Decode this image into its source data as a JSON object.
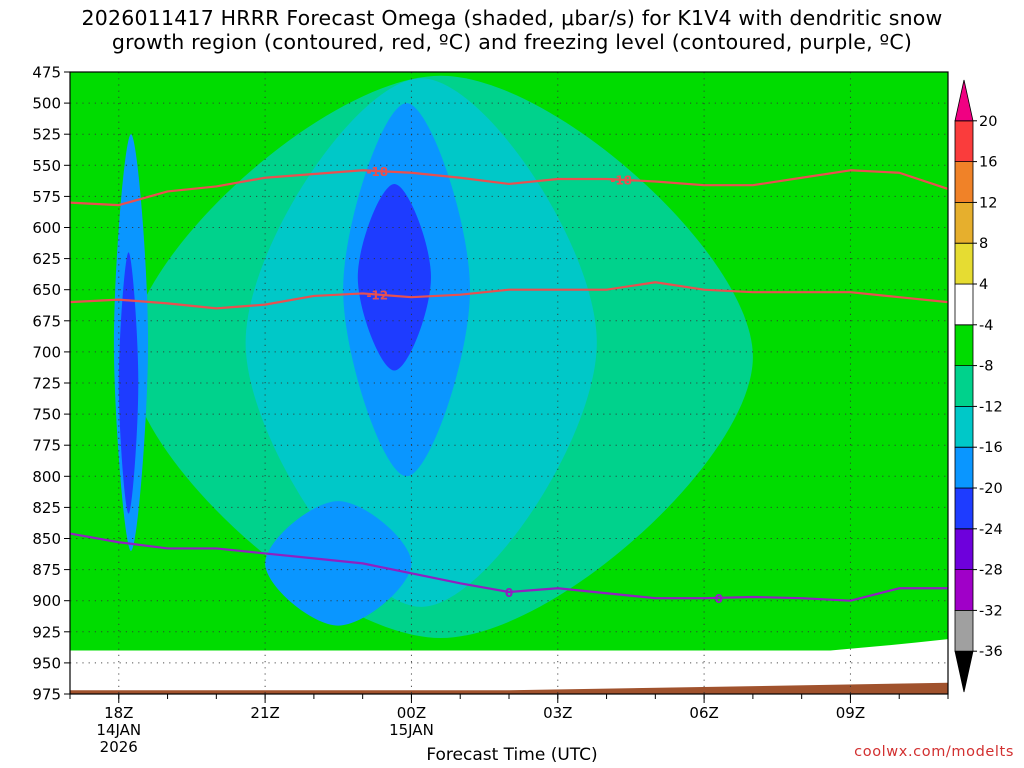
{
  "title": {
    "line1": "2026011417 HRRR Forecast Omega (shaded, μbar/s) for K1V4 with dendritic snow",
    "line2": "growth region (contoured, red, ºC) and freezing level (contoured, purple, ºC)"
  },
  "xlabel": "Forecast Time (UTC)",
  "watermark": "coolwx.com/modelts",
  "chart_data": {
    "type": "heatmap",
    "title": "2026011417 HRRR Forecast Omega (shaded, μbar/s) for K1V4 with dendritic snow growth region (contoured, red, ºC) and freezing level (contoured, purple, ºC)",
    "xlabel": "Forecast Time (UTC)",
    "ylabel": "",
    "x_hours_utc": [
      17,
      18,
      19,
      20,
      21,
      22,
      23,
      24,
      25,
      26,
      27,
      28,
      29,
      30,
      31,
      32,
      33,
      34,
      35
    ],
    "x_ticks": [
      {
        "hour": 18,
        "labels": [
          "18Z",
          "14JAN",
          "2026"
        ]
      },
      {
        "hour": 21,
        "labels": [
          "21Z"
        ]
      },
      {
        "hour": 24,
        "labels": [
          "00Z",
          "15JAN"
        ]
      },
      {
        "hour": 27,
        "labels": [
          "03Z"
        ]
      },
      {
        "hour": 30,
        "labels": [
          "06Z"
        ]
      },
      {
        "hour": 33,
        "labels": [
          "09Z"
        ]
      }
    ],
    "y_pressure_hpa": [
      475,
      500,
      525,
      550,
      575,
      600,
      625,
      650,
      675,
      700,
      725,
      750,
      775,
      800,
      825,
      850,
      875,
      900,
      925,
      950,
      975
    ],
    "y_axis": "pressure (hPa), decreasing upward",
    "ylim": [
      975,
      475
    ],
    "xlim": [
      17.0,
      35.0
    ],
    "grid": "dotted",
    "colorbar": {
      "levels": [
        -36,
        -32,
        -28,
        -24,
        -20,
        -16,
        -12,
        -8,
        -4,
        4,
        8,
        12,
        16,
        20
      ],
      "colors": [
        "#000000",
        "#a0a0a0",
        "#a000c8",
        "#6e00dc",
        "#1e3cff",
        "#0a96ff",
        "#00c8c8",
        "#00d28c",
        "#00dc00",
        "#ffffff",
        "#e6dc32",
        "#e6af2d",
        "#f08228",
        "#fa3c3c",
        "#f00082"
      ],
      "ranges": [
        "<-36",
        "-36..-32",
        "-32..-28",
        "-28..-24",
        "-24..-20",
        "-20..-16",
        "-16..-12",
        "-12..-8",
        "-8..-4",
        "-4..4",
        "4..8",
        "8..12",
        "12..16",
        "16..20",
        ">20"
      ]
    },
    "omega_field": {
      "units": "μbar/s",
      "approx_regions": [
        {
          "range": "-24..-20",
          "hours": [
            18.0,
            18.4
          ],
          "pressure": [
            620,
            830
          ],
          "note": "narrow core at 18Z"
        },
        {
          "range": "-24..-20",
          "hours": [
            22.9,
            24.4
          ],
          "pressure": [
            565,
            715
          ],
          "note": "core near 23Z"
        },
        {
          "range": "-20..-16",
          "hours": [
            17.9,
            18.6
          ],
          "pressure": [
            525,
            860
          ]
        },
        {
          "range": "-20..-16",
          "hours": [
            22.6,
            25.2
          ],
          "pressure": [
            500,
            800
          ]
        },
        {
          "range": "-20..-16",
          "hours": [
            21.0,
            24.0
          ],
          "pressure": [
            820,
            920
          ]
        },
        {
          "range": "-16..-12",
          "hours": [
            20.6,
            27.8
          ],
          "pressure": [
            480,
            905
          ]
        },
        {
          "range": "-12..-8",
          "hours": [
            18.2,
            31.0
          ],
          "pressure": [
            478,
            930
          ]
        },
        {
          "range": "-8..-4",
          "hours": [
            17.0,
            35.0
          ],
          "pressure": [
            475,
            960
          ]
        },
        {
          "range": "-4..4",
          "hours": [
            17.0,
            35.0
          ],
          "pressure": [
            940,
            975
          ],
          "note": "near-surface layer and scattered pockets"
        }
      ]
    },
    "contours": [
      {
        "label": "-18",
        "color": "#e85050",
        "unit": "ºC",
        "hours": [
          17.0,
          18.0,
          19.0,
          20.0,
          21.0,
          22.0,
          23.0,
          24.0,
          25.0,
          26.0,
          27.0,
          28.0,
          29.0,
          30.0,
          31.0,
          32.0,
          33.0,
          34.0,
          35.0
        ],
        "pressure_hpa": [
          580,
          582,
          571,
          567,
          560,
          557,
          554,
          556,
          560,
          565,
          561,
          561,
          563,
          566,
          566,
          560,
          554,
          556,
          569
        ]
      },
      {
        "label": "-12",
        "color": "#e85050",
        "unit": "ºC",
        "hours": [
          17.0,
          18.0,
          19.0,
          20.0,
          21.0,
          22.0,
          23.0,
          24.0,
          25.0,
          26.0,
          27.0,
          28.0,
          29.0,
          30.0,
          31.0,
          32.0,
          33.0,
          34.0,
          35.0
        ],
        "pressure_hpa": [
          660,
          658,
          661,
          665,
          662,
          655,
          653,
          656,
          654,
          650,
          650,
          650,
          644,
          650,
          652,
          652,
          652,
          656,
          660
        ]
      },
      {
        "label": "0",
        "color": "#9020c0",
        "unit": "ºC",
        "hours": [
          17.0,
          18.0,
          19.0,
          20.0,
          21.0,
          22.0,
          23.0,
          24.0,
          25.0,
          26.0,
          27.0,
          28.0,
          29.0,
          30.0,
          31.0,
          32.0,
          33.0,
          34.0,
          35.0
        ],
        "pressure_hpa": [
          846,
          853,
          858,
          858,
          862,
          866,
          870,
          878,
          886,
          893,
          890,
          894,
          898,
          898,
          897,
          898,
          900,
          890,
          890
        ]
      }
    ],
    "terrain": {
      "color": "#a0522d",
      "hours": [
        17.0,
        26.0,
        35.0
      ],
      "pressure_hpa": [
        972,
        972,
        966
      ]
    }
  }
}
